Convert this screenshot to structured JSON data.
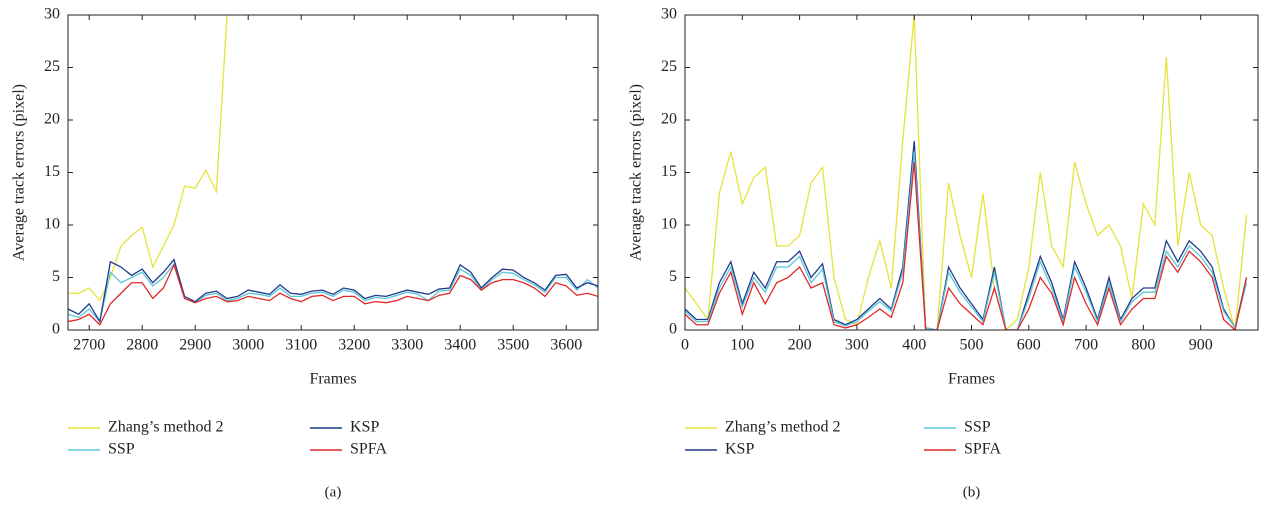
{
  "chart_data": [
    {
      "type": "line",
      "label": "(a)",
      "xlabel": "Frames",
      "ylabel": "Average track errors (pixel)",
      "xlim": [
        2660,
        3660
      ],
      "xticks": [
        2700,
        2800,
        2900,
        3000,
        3100,
        3200,
        3300,
        3400,
        3500,
        3600
      ],
      "ylim": [
        0,
        30
      ],
      "yticks": [
        0,
        5,
        10,
        15,
        20,
        25,
        30
      ],
      "x": [
        2660,
        2680,
        2700,
        2720,
        2740,
        2760,
        2780,
        2800,
        2820,
        2840,
        2860,
        2880,
        2900,
        2920,
        2940,
        2960,
        2980,
        3000,
        3020,
        3040,
        3060,
        3080,
        3100,
        3120,
        3140,
        3160,
        3180,
        3200,
        3220,
        3240,
        3260,
        3280,
        3300,
        3320,
        3340,
        3360,
        3380,
        3400,
        3420,
        3440,
        3460,
        3480,
        3500,
        3520,
        3540,
        3560,
        3580,
        3600,
        3620,
        3640,
        3660
      ],
      "series": [
        {
          "name": "Zhang’s method 2",
          "color": "#e4e43a",
          "values": [
            3.5,
            3.5,
            4,
            2.8,
            5,
            8,
            9,
            9.8,
            6,
            8,
            10,
            13.7,
            13.5,
            15.2,
            13.2,
            30,
            null,
            null,
            null,
            null,
            null,
            null,
            null,
            null,
            null,
            null,
            null,
            null,
            null,
            null,
            null,
            null,
            null,
            null,
            null,
            null,
            null,
            null,
            null,
            null,
            null,
            null,
            null,
            null,
            null,
            null,
            null,
            null,
            null,
            null,
            null
          ]
        },
        {
          "name": "SSP",
          "color": "#5cc6d8",
          "values": [
            1.5,
            1.2,
            2,
            0.8,
            5.5,
            4.5,
            5,
            5.5,
            4.2,
            5,
            6.3,
            3,
            2.6,
            3.3,
            3.5,
            2.8,
            3,
            3.5,
            3.4,
            3.2,
            4,
            3.2,
            3.2,
            3.5,
            3.6,
            3.2,
            3.8,
            3.6,
            2.8,
            3.1,
            3,
            3.3,
            3.6,
            3.4,
            2.8,
            3.7,
            3.8,
            5.8,
            5.2,
            3.8,
            4.8,
            5.5,
            5.4,
            4.8,
            4.3,
            3.6,
            5,
            5,
            3.8,
            4.8,
            4
          ]
        },
        {
          "name": "KSP",
          "color": "#1f3c8c",
          "values": [
            2,
            1.5,
            2.5,
            0.8,
            6.5,
            6,
            5.2,
            5.8,
            4.5,
            5.5,
            6.7,
            3.2,
            2.7,
            3.5,
            3.7,
            3,
            3.2,
            3.8,
            3.6,
            3.4,
            4.3,
            3.5,
            3.4,
            3.7,
            3.8,
            3.4,
            4.0,
            3.8,
            3.0,
            3.3,
            3.2,
            3.5,
            3.8,
            3.6,
            3.4,
            3.9,
            4.0,
            6.2,
            5.5,
            4.0,
            5.0,
            5.8,
            5.7,
            5.0,
            4.5,
            3.8,
            5.2,
            5.3,
            4.0,
            4.5,
            4.2
          ]
        },
        {
          "name": "SPFA",
          "color": "#e0282a",
          "values": [
            0.8,
            1,
            1.5,
            0.5,
            2.5,
            3.5,
            4.5,
            4.5,
            3,
            4,
            6.2,
            3,
            2.6,
            3,
            3.2,
            2.7,
            2.8,
            3.2,
            3,
            2.8,
            3.5,
            3,
            2.7,
            3.2,
            3.3,
            2.8,
            3.2,
            3.2,
            2.5,
            2.7,
            2.6,
            2.8,
            3.2,
            3,
            2.8,
            3.3,
            3.5,
            5.2,
            4.8,
            3.8,
            4.5,
            4.8,
            4.8,
            4.5,
            4,
            3.2,
            4.5,
            4.2,
            3.3,
            3.5,
            3.2
          ]
        }
      ]
    },
    {
      "type": "line",
      "label": "(b)",
      "xlabel": "Frames",
      "ylabel": "Average track errors (pixel)",
      "xlim": [
        0,
        1000
      ],
      "xticks": [
        0,
        100,
        200,
        300,
        400,
        500,
        600,
        700,
        800,
        900
      ],
      "ylim": [
        0,
        30
      ],
      "yticks": [
        0,
        5,
        10,
        15,
        20,
        25,
        30
      ],
      "x": [
        0,
        20,
        40,
        60,
        80,
        100,
        120,
        140,
        160,
        180,
        200,
        220,
        240,
        260,
        280,
        300,
        320,
        340,
        360,
        380,
        400,
        420,
        440,
        460,
        480,
        500,
        520,
        540,
        560,
        580,
        600,
        620,
        640,
        660,
        680,
        700,
        720,
        740,
        760,
        780,
        800,
        820,
        840,
        860,
        880,
        900,
        920,
        940,
        960,
        980
      ],
      "series": [
        {
          "name": "Zhang’s method 2",
          "color": "#e4e43a",
          "values": [
            4,
            2.5,
            1,
            13,
            17,
            12,
            14.5,
            15.5,
            8,
            8,
            9,
            14,
            15.5,
            5,
            1,
            0.5,
            5,
            8.5,
            4,
            18,
            30,
            0,
            0,
            14,
            9,
            5,
            13,
            4,
            0,
            1,
            6,
            15,
            8,
            6,
            16,
            12,
            9,
            10,
            8,
            3,
            12,
            10,
            26,
            8,
            15,
            10,
            9,
            4,
            0,
            11
          ]
        },
        {
          "name": "KSP",
          "color": "#1f3c8c",
          "values": [
            2,
            1,
            1,
            4.5,
            6.5,
            2.5,
            5.5,
            4,
            6.5,
            6.5,
            7.5,
            5,
            6.3,
            1,
            0.5,
            1,
            2,
            3,
            2,
            6,
            18,
            0.2,
            0,
            6,
            4,
            2.5,
            1,
            6,
            0,
            0,
            3.5,
            7,
            4.5,
            1,
            6.5,
            4,
            1,
            5,
            1,
            3,
            4,
            4,
            8.5,
            6.5,
            8.5,
            7.5,
            6,
            2,
            0.2,
            5
          ]
        },
        {
          "name": "SSP",
          "color": "#5cc6d8",
          "values": [
            1.8,
            0.8,
            0.8,
            4,
            6,
            2.2,
            5,
            3.6,
            6,
            6,
            7,
            4.5,
            5.8,
            0.8,
            0.4,
            0.8,
            1.8,
            2.7,
            1.8,
            5.5,
            17,
            0.2,
            0,
            5.5,
            3.6,
            2.2,
            0.8,
            5.5,
            0,
            0,
            3,
            6.5,
            4,
            0.8,
            6,
            3.6,
            0.8,
            4.5,
            0.8,
            2.7,
            3.6,
            3.6,
            7.5,
            6,
            8,
            7,
            5.5,
            1.8,
            0.2,
            4.5
          ]
        },
        {
          "name": "SPFA",
          "color": "#e0282a",
          "values": [
            1.5,
            0.5,
            0.5,
            3.5,
            5.5,
            1.5,
            4.5,
            2.5,
            4.5,
            5,
            6,
            4,
            4.5,
            0.5,
            0.2,
            0.5,
            1.2,
            2,
            1.2,
            4.5,
            16,
            0,
            0,
            4,
            2.5,
            1.5,
            0.5,
            4,
            0,
            0,
            2,
            5,
            3.5,
            0.5,
            5,
            2.5,
            0.5,
            4,
            0.5,
            2,
            3,
            3,
            7,
            5.5,
            7.5,
            6.5,
            5,
            1,
            0,
            5
          ]
        }
      ]
    }
  ]
}
